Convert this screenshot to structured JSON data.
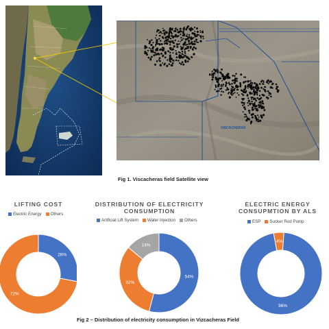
{
  "figure1": {
    "caption": "Fig 1. Viscacheras field Satellite view",
    "map_label": "VISCACHERAS"
  },
  "figure2": {
    "caption": "Fig 2 – Distribution of electricity consumption in Vizcacheras Field"
  },
  "colors": {
    "blue": "#4472c4",
    "orange": "#ed7d31",
    "gray": "#a5a5a5"
  },
  "chart_data": [
    {
      "type": "pie",
      "title": "LIFTING COST",
      "labels": [
        "Electric Energy",
        "Others"
      ],
      "values": [
        28,
        72
      ],
      "colors": [
        "#4472c4",
        "#ed7d31"
      ],
      "legend": "top",
      "data_labels": [
        "28%",
        "72%"
      ]
    },
    {
      "type": "pie",
      "title": "DISTRIBUTION OF ELECTRICITY CONSUMPTION",
      "labels": [
        "Artificial Lift System",
        "Water Injection",
        "Others"
      ],
      "values": [
        54,
        32,
        14
      ],
      "colors": [
        "#4472c4",
        "#ed7d31",
        "#a5a5a5"
      ],
      "legend": "top",
      "data_labels": [
        "54%",
        "32%",
        "14%"
      ]
    },
    {
      "type": "pie",
      "title": "ELECTRIC ENERGY CONSUPMTION BY ALS",
      "labels": [
        "ESP",
        "Sucker Rod Pump"
      ],
      "values": [
        96,
        4
      ],
      "colors": [
        "#4472c4",
        "#ed7d31"
      ],
      "legend": "top",
      "data_labels": [
        "96%",
        "4%"
      ]
    }
  ]
}
